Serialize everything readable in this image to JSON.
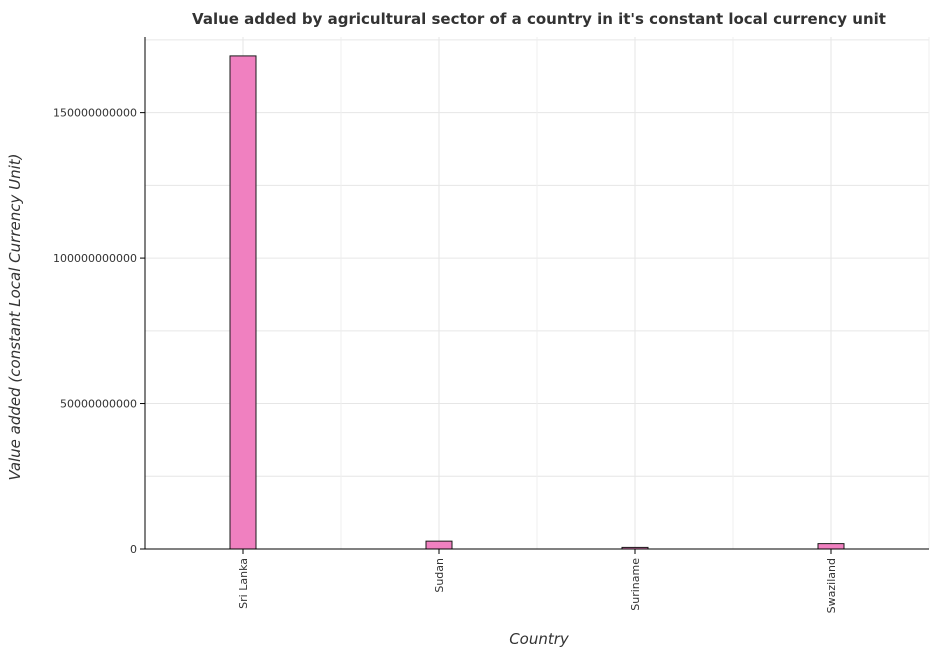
{
  "chart_data": {
    "type": "bar",
    "title": "Value added by agricultural sector of a country in it's constant local currency unit",
    "xlabel": "Country",
    "ylabel": "Value added (constant Local Currency Unit)",
    "categories": [
      "Sri Lanka",
      "Sudan",
      "Suriname",
      "Swaziland"
    ],
    "values": [
      169500000000,
      2700000000,
      550000000,
      1850000000
    ],
    "ylim": [
      0,
      176000000000
    ],
    "yticks": [
      0,
      50000000000,
      100000000000,
      150000000000
    ],
    "ytick_labels": [
      "0",
      "50000000000",
      "100000000000",
      "150000000000"
    ],
    "grid": true,
    "bar_color": "#f080c0",
    "bar_edge_color": "#1a1a1a"
  }
}
